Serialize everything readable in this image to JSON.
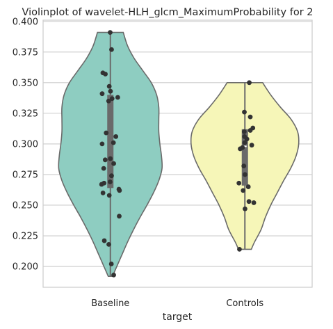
{
  "chart_data": {
    "type": "violin",
    "title": "Violinplot of wavelet-HLH_glcm_MaximumProbability for 2",
    "xlabel": "target",
    "ylabel": "",
    "categories": [
      "Baseline",
      "Controls"
    ],
    "ylim": [
      0.183,
      0.401
    ],
    "yticks": [
      0.2,
      0.225,
      0.25,
      0.275,
      0.3,
      0.325,
      0.35,
      0.375,
      0.4
    ],
    "ytick_labels": [
      "0.200",
      "0.225",
      "0.250",
      "0.275",
      "0.300",
      "0.325",
      "0.350",
      "0.375",
      "0.400"
    ],
    "grid": true,
    "groups": [
      {
        "name": "Baseline",
        "color": "#8ecdc1",
        "min": 0.192,
        "max": 0.391,
        "q1": 0.264,
        "median": 0.288,
        "q3": 0.34,
        "density": [
          [
            0.192,
            0.04
          ],
          [
            0.2,
            0.12
          ],
          [
            0.21,
            0.22
          ],
          [
            0.22,
            0.32
          ],
          [
            0.23,
            0.43
          ],
          [
            0.24,
            0.55
          ],
          [
            0.25,
            0.68
          ],
          [
            0.26,
            0.8
          ],
          [
            0.27,
            0.9
          ],
          [
            0.28,
            0.96
          ],
          [
            0.29,
            0.95
          ],
          [
            0.3,
            0.92
          ],
          [
            0.31,
            0.9
          ],
          [
            0.32,
            0.9
          ],
          [
            0.33,
            0.9
          ],
          [
            0.34,
            0.86
          ],
          [
            0.35,
            0.76
          ],
          [
            0.36,
            0.6
          ],
          [
            0.37,
            0.44
          ],
          [
            0.38,
            0.32
          ],
          [
            0.391,
            0.24
          ]
        ],
        "points": [
          0.391,
          0.377,
          0.358,
          0.357,
          0.347,
          0.343,
          0.341,
          0.338,
          0.337,
          0.335,
          0.309,
          0.306,
          0.301,
          0.3,
          0.288,
          0.287,
          0.284,
          0.28,
          0.274,
          0.269,
          0.268,
          0.267,
          0.263,
          0.262,
          0.26,
          0.258,
          0.241,
          0.221,
          0.218,
          0.202,
          0.193
        ]
      },
      {
        "name": "Controls",
        "color": "#f6f6b8",
        "min": 0.214,
        "max": 0.35,
        "q1": 0.266,
        "median": 0.298,
        "q3": 0.312,
        "density": [
          [
            0.214,
            0.12
          ],
          [
            0.22,
            0.18
          ],
          [
            0.23,
            0.3
          ],
          [
            0.24,
            0.38
          ],
          [
            0.25,
            0.48
          ],
          [
            0.26,
            0.6
          ],
          [
            0.27,
            0.72
          ],
          [
            0.28,
            0.85
          ],
          [
            0.29,
            0.95
          ],
          [
            0.3,
            1.0
          ],
          [
            0.31,
            0.98
          ],
          [
            0.32,
            0.86
          ],
          [
            0.33,
            0.66
          ],
          [
            0.34,
            0.48
          ],
          [
            0.35,
            0.33
          ]
        ],
        "points": [
          0.35,
          0.326,
          0.322,
          0.313,
          0.311,
          0.31,
          0.306,
          0.304,
          0.301,
          0.299,
          0.297,
          0.296,
          0.282,
          0.275,
          0.268,
          0.265,
          0.262,
          0.253,
          0.252,
          0.247,
          0.214
        ]
      }
    ]
  }
}
